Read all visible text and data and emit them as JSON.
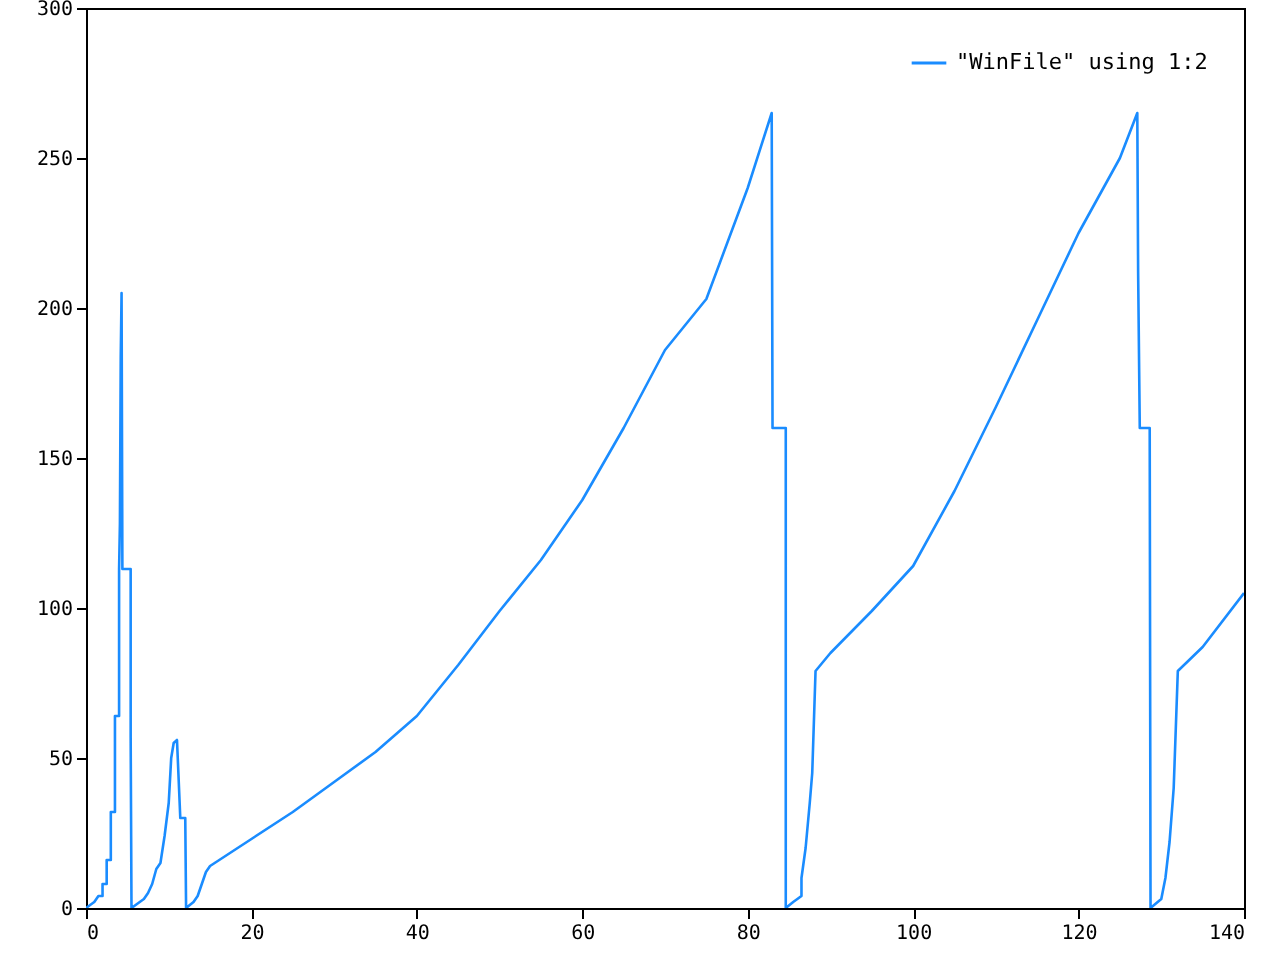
{
  "chart_data": {
    "type": "line",
    "x": [
      0,
      0.5,
      1,
      1.5,
      2,
      2,
      2.5,
      2.5,
      3,
      3,
      3.5,
      3.5,
      4,
      4,
      4.1,
      4.2,
      4.3,
      4.4,
      5.4,
      5.4,
      5.5,
      6,
      7,
      7.5,
      8,
      8.5,
      9,
      9.5,
      10,
      10.3,
      10.6,
      11,
      11.2,
      11.4,
      12,
      12.1,
      13,
      13.5,
      14,
      14.5,
      15,
      20,
      25,
      30,
      35,
      40,
      45,
      50,
      55,
      60,
      65,
      70,
      75,
      80,
      82.9,
      83,
      84.6,
      84.6,
      85.5,
      86.5,
      86.5,
      87,
      87.5,
      87.8,
      88.2,
      90,
      95,
      100,
      105,
      110,
      115,
      120,
      125,
      127.1,
      127.2,
      127.4,
      128.6,
      128.7,
      130,
      130.5,
      131,
      131.5,
      132,
      135,
      140
    ],
    "series": [
      {
        "name": "\"WinFile\" using 1:2",
        "color": "#1a8cff",
        "values": [
          0,
          1,
          2,
          4,
          4,
          8,
          8,
          16,
          16,
          32,
          32,
          64,
          64,
          113,
          128,
          184,
          205,
          113,
          113,
          57,
          0,
          1,
          3,
          5,
          8,
          13,
          15,
          24,
          35,
          50,
          55,
          56,
          43,
          30,
          30,
          0,
          2,
          4,
          8,
          12,
          14,
          23,
          32,
          42,
          52,
          64,
          81,
          99,
          116,
          136,
          160,
          186,
          203,
          240,
          265,
          160,
          160,
          0,
          2,
          4,
          10,
          20,
          35,
          45,
          79,
          85,
          99,
          114,
          139,
          167,
          196,
          225,
          250,
          265,
          212,
          160,
          160,
          0,
          3,
          10,
          22,
          40,
          79,
          87,
          105
        ]
      }
    ],
    "xlim": [
      0,
      140
    ],
    "xticks": [
      0,
      20,
      40,
      60,
      80,
      100,
      120,
      140
    ],
    "ylim": [
      0,
      300
    ],
    "yticks": [
      0,
      50,
      100,
      150,
      200,
      250,
      300
    ],
    "grid": false,
    "legend": "top right"
  }
}
